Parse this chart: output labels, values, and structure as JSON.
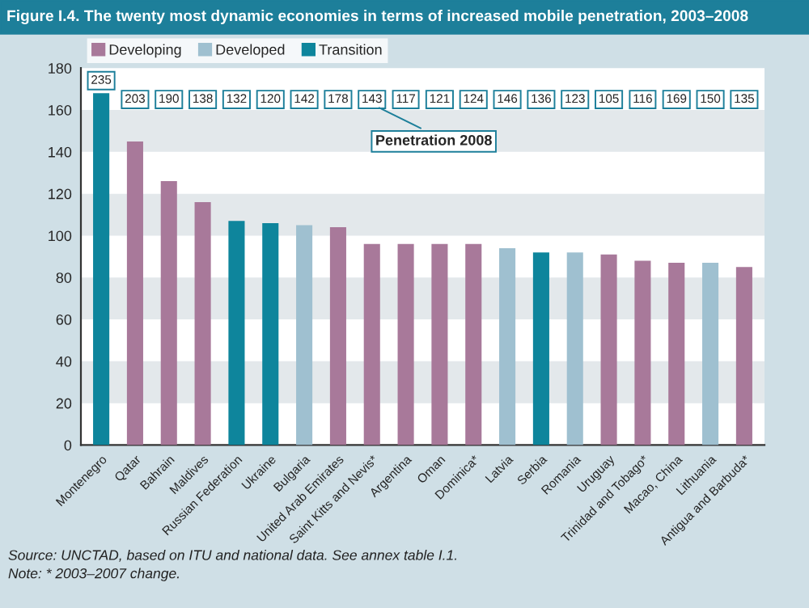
{
  "chart_data": {
    "type": "bar",
    "title": "Figure I.4. The twenty most dynamic economies in terms of increased mobile penetration, 2003–2008",
    "categories": [
      "Montenegro",
      "Qatar",
      "Bahrain",
      "Maldives",
      "Russian Federation",
      "Ukraine",
      "Bulgaria",
      "United Arab Emirates",
      "Saint Kitts and Nevis*",
      "Argentina",
      "Oman",
      "Dominica*",
      "Latvia",
      "Serbia",
      "Romania",
      "Uruguay",
      "Trinidad and Tobago*",
      "Macao, China",
      "Lithuania",
      "Antigua and Barbuda*"
    ],
    "series": [
      {
        "name": "Developing",
        "color": "#a8799a",
        "values": [
          null,
          145,
          126,
          116,
          null,
          null,
          null,
          104,
          96,
          96,
          96,
          96,
          null,
          null,
          null,
          91,
          88,
          87,
          null,
          85
        ]
      },
      {
        "name": "Developed",
        "color": "#9fc0d0",
        "values": [
          null,
          null,
          null,
          null,
          null,
          null,
          105,
          null,
          null,
          null,
          null,
          null,
          94,
          null,
          92,
          null,
          null,
          null,
          87,
          null
        ]
      },
      {
        "name": "Transition",
        "color": "#0e859c",
        "values": [
          168,
          null,
          null,
          null,
          107,
          106,
          null,
          null,
          null,
          null,
          null,
          null,
          null,
          92,
          null,
          null,
          null,
          null,
          null,
          null
        ]
      }
    ],
    "ylim": [
      0,
      180
    ],
    "yticks": [
      0,
      20,
      40,
      60,
      80,
      100,
      120,
      140,
      160,
      180
    ],
    "legend": "top left",
    "annotations": [
      {
        "text": "235",
        "x": "Montenegro",
        "y": 174
      },
      {
        "text": "203",
        "x": "Qatar",
        "y": 165
      },
      {
        "text": "190",
        "x": "Bahrain",
        "y": 165
      },
      {
        "text": "138",
        "x": "Maldives",
        "y": 165
      },
      {
        "text": "132",
        "x": "Russian Federation",
        "y": 165
      },
      {
        "text": "120",
        "x": "Ukraine",
        "y": 165
      },
      {
        "text": "142",
        "x": "Bulgaria",
        "y": 165
      },
      {
        "text": "178",
        "x": "United Arab Emirates",
        "y": 165
      },
      {
        "text": "143",
        "x": "Saint Kitts and Nevis*",
        "y": 165
      },
      {
        "text": "117",
        "x": "Argentina",
        "y": 165
      },
      {
        "text": "121",
        "x": "Oman",
        "y": 165
      },
      {
        "text": "124",
        "x": "Dominica*",
        "y": 165
      },
      {
        "text": "146",
        "x": "Latvia",
        "y": 165
      },
      {
        "text": "136",
        "x": "Serbia",
        "y": 165
      },
      {
        "text": "123",
        "x": "Romania",
        "y": 165
      },
      {
        "text": "105",
        "x": "Uruguay",
        "y": 165
      },
      {
        "text": "116",
        "x": "Trinidad and Tobago*",
        "y": 165
      },
      {
        "text": "169",
        "x": "Macao, China",
        "y": 165
      },
      {
        "text": "150",
        "x": "Lithuania",
        "y": 165
      },
      {
        "text": "135",
        "x": "Antigua and Barbuda*",
        "y": 165
      },
      "Penetration 2008",
      "Source: UNCTAD, based on ITU and national data. See annex table I.1.",
      "Note: * 2003–2007 change."
    ]
  }
}
